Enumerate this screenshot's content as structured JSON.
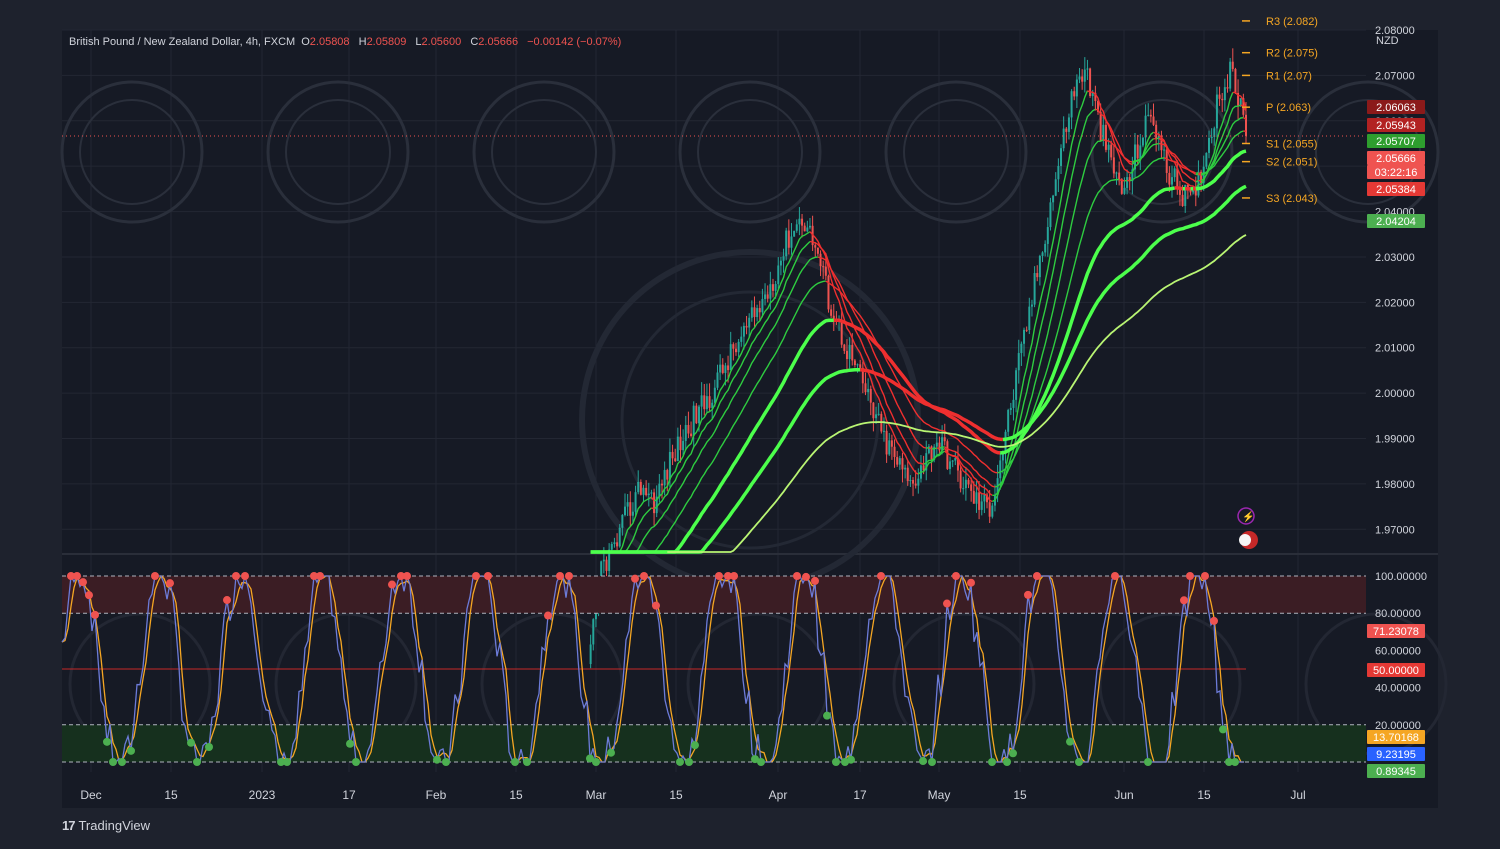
{
  "header": {
    "symbol": "British Pound / New Zealand Dollar, 4h, FXCM",
    "o_label": "O",
    "o_value": "2.05808",
    "h_label": "H",
    "h_value": "2.05809",
    "l_label": "L",
    "l_value": "2.05600",
    "c_label": "C",
    "c_value": "2.05666",
    "change": "−0.00142 (−0.07%)"
  },
  "currency_label": "NZD",
  "footer": {
    "logo_text": "TradingView"
  },
  "colors": {
    "background": "#1e222d",
    "pane": "#161a25",
    "text": "#d1d4dc",
    "up": "#26a69a",
    "down": "#ef5350",
    "pivot": "#f5a623",
    "overbought": "#ef5350",
    "oversold": "#4caf50",
    "k_line": "#6c7bd8",
    "d_line": "#f5a623"
  },
  "chart_data": [
    {
      "type": "line",
      "title": "British Pound / New Zealand Dollar, 4h, FXCM",
      "ylim": [
        1.965,
        2.08
      ],
      "y_ticks": [
        "2.08000",
        "2.07000",
        "2.06000",
        "2.05000",
        "2.04000",
        "2.03000",
        "2.02000",
        "2.01000",
        "2.00000",
        "1.99000",
        "1.98000",
        "1.97000"
      ],
      "x_ticks": [
        "Dec",
        "15",
        "2023",
        "17",
        "Feb",
        "15",
        "Mar",
        "15",
        "Apr",
        "17",
        "May",
        "15",
        "Jun",
        "15",
        "Jul"
      ],
      "series": [
        {
          "values": [
            1.938,
            1.962,
            1.966,
            1.974,
            1.98,
            1.976,
            1.984,
            1.99,
            1.995,
            1.999,
            2.005,
            2.01,
            2.015,
            2.02,
            2.027,
            2.035,
            2.039,
            2.032,
            2.02,
            2.012,
            2.005,
            1.998,
            1.99,
            1.985,
            1.98,
            1.985,
            1.99,
            1.985,
            1.98,
            1.976,
            1.975,
            1.99,
            2.005,
            2.02,
            2.035,
            2.05,
            2.065,
            2.072,
            2.06,
            2.05,
            2.044,
            2.055,
            2.062,
            2.05,
            2.045,
            2.042,
            2.053,
            2.066,
            2.071,
            2.057
          ]
        },
        {
          "name": "P",
          "values": [
            2.063
          ]
        }
      ],
      "pivot_levels": [
        {
          "label": "R3 (2.082)",
          "value": 2.082
        },
        {
          "label": "R2 (2.075)",
          "value": 2.075
        },
        {
          "label": "R1 (2.07)",
          "value": 2.07
        },
        {
          "label": "P (2.063)",
          "value": 2.063
        },
        {
          "label": "S1 (2.055)",
          "value": 2.055
        },
        {
          "label": "S2 (2.051)",
          "value": 2.051
        },
        {
          "label": "S3 (2.043)",
          "value": 2.043
        }
      ],
      "price_badges": [
        {
          "text": "2.06063",
          "value": 2.06063,
          "color": "#8b1a1a"
        },
        {
          "text": "2.05943",
          "value": 2.05943,
          "color": "#b22222"
        },
        {
          "text": "2.05707",
          "value": 2.05707,
          "color": "#2e9e2e"
        },
        {
          "text": "2.05666",
          "value": 2.05666,
          "color": "#ef5350"
        },
        {
          "text": "03:22:16",
          "value": 2.05335,
          "color": "#ef5350"
        },
        {
          "text": "2.05384",
          "value": 2.05384,
          "color": "#e53935"
        },
        {
          "text": "2.04204",
          "value": 2.04204,
          "color": "#4caf50"
        }
      ]
    },
    {
      "type": "line",
      "ylim": [
        0,
        100
      ],
      "y_ticks": [
        "100.00000",
        "80.00000",
        "60.00000",
        "40.00000",
        "20.00000"
      ],
      "levels": [
        100,
        80,
        50,
        20,
        0
      ],
      "badges": [
        {
          "text": "71.23078",
          "value": 71.23078,
          "color": "#ef5350"
        },
        {
          "text": "50.00000",
          "value": 50,
          "color": "#e53935"
        },
        {
          "text": "13.70168",
          "value": 13.70168,
          "color": "#f5a623"
        },
        {
          "text": "9.23195",
          "value": 9.23195,
          "color": "#2962ff"
        },
        {
          "text": "0.89345",
          "value": 0.89345,
          "color": "#4caf50"
        }
      ]
    }
  ]
}
